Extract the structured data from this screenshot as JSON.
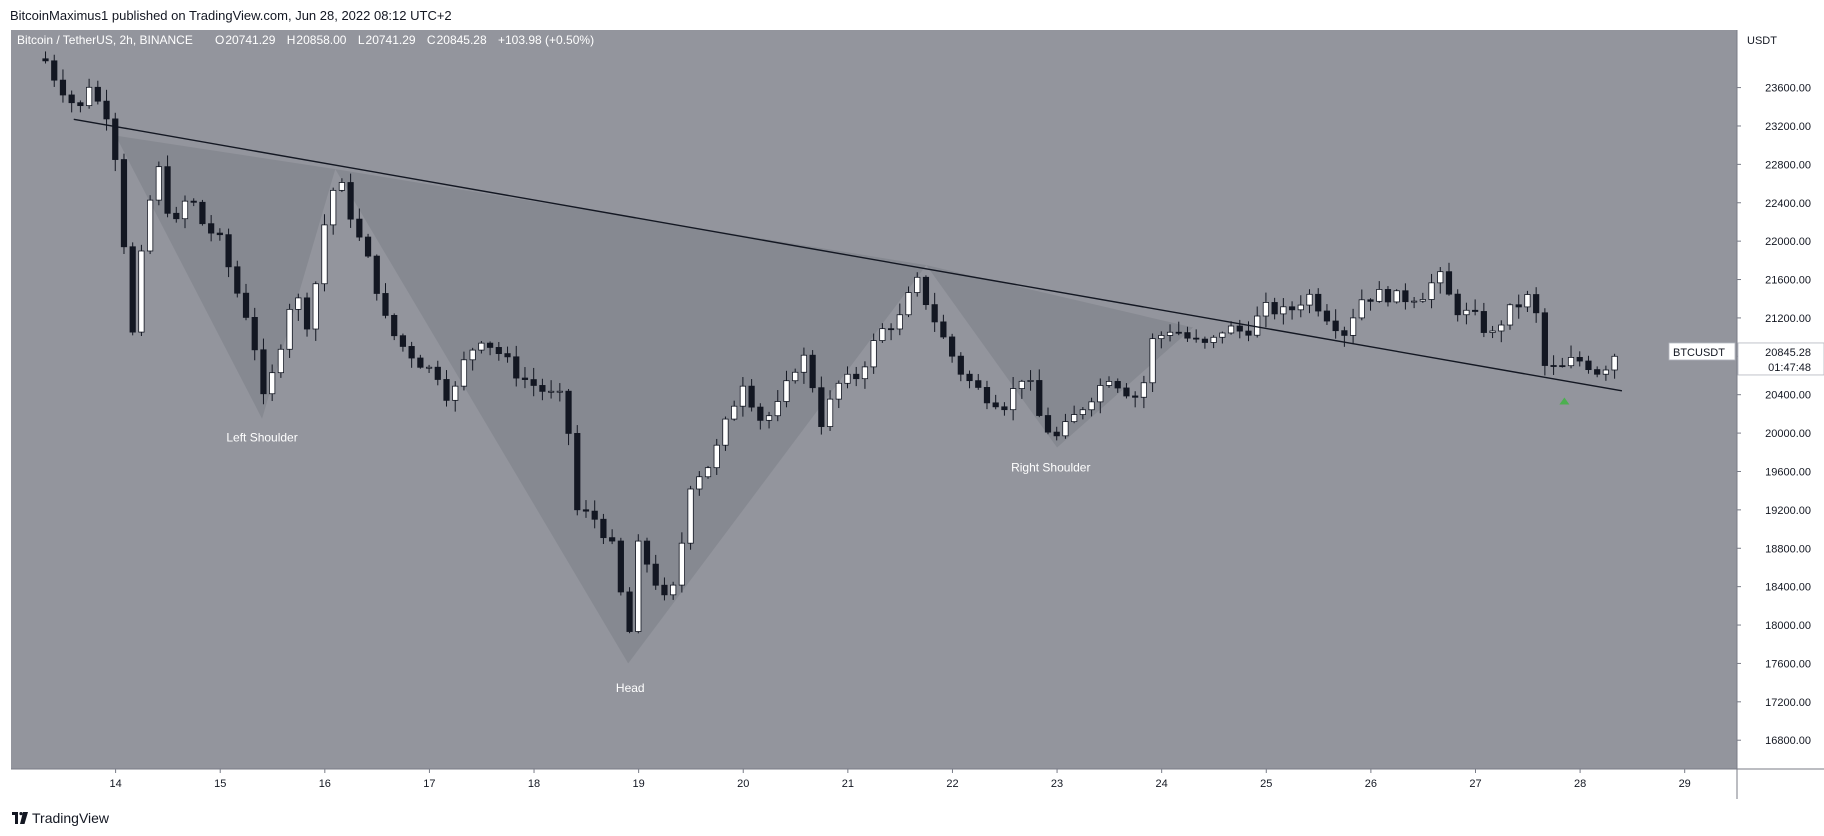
{
  "header": {
    "publisher_line": "BitcoinMaximus1 published on TradingView.com, Jun 28, 2022 08:12 UTC+2"
  },
  "footer": {
    "brand": "TradingView",
    "logo_icon": "tradingview-logo-icon"
  },
  "chart_data": {
    "type": "candlestick",
    "symbol_line": {
      "title": "Bitcoin / TetherUS, 2h, BINANCE",
      "open_label": "O",
      "open": "20741.29",
      "high_label": "H",
      "high": "20858.00",
      "low_label": "L",
      "low": "20741.29",
      "close_label": "C",
      "close": "20845.28",
      "change": "+103.98 (+0.50%)"
    },
    "price_scale": {
      "currency": "USDT",
      "ticks": [
        "23600.00",
        "23200.00",
        "22800.00",
        "22400.00",
        "22000.00",
        "21600.00",
        "21200.00",
        "20800.00",
        "20400.00",
        "20000.00",
        "19600.00",
        "19200.00",
        "18800.00",
        "18400.00",
        "18000.00",
        "17600.00",
        "17200.00",
        "16800.00"
      ]
    },
    "ylim": [
      16500,
      24200
    ],
    "xlim": [
      13.0,
      29.5
    ],
    "x_ticks": [
      "14",
      "15",
      "16",
      "17",
      "18",
      "19",
      "20",
      "21",
      "22",
      "23",
      "24",
      "25",
      "26",
      "27",
      "28",
      "29"
    ],
    "last_price": {
      "symbol": "BTCUSDT",
      "value": "20845.28",
      "countdown": "01:47:48",
      "price": 20845.28
    },
    "colors": {
      "background": "#93959d",
      "up_candle": "#ffffff",
      "down_candle": "#131722",
      "trendline": "#131722",
      "pattern_fill": "#7c7f86",
      "arrow": "#4caf50",
      "annotation_text": "#ffffff"
    },
    "trendline": {
      "start": {
        "x": 13.6,
        "price": 23270
      },
      "end": {
        "x": 28.4,
        "price": 20440
      }
    },
    "pattern": {
      "name": "inverse head and shoulders",
      "points": [
        {
          "x": 14.0,
          "price": 23100
        },
        {
          "x": 15.4,
          "price": 20150
        },
        {
          "x": 16.1,
          "price": 22750
        },
        {
          "x": 18.9,
          "price": 17600
        },
        {
          "x": 21.75,
          "price": 21750
        },
        {
          "x": 23.0,
          "price": 19850
        },
        {
          "x": 24.3,
          "price": 21100
        }
      ]
    },
    "annotations": [
      {
        "text": "Left Shoulder",
        "x": 15.4,
        "price": 19910
      },
      {
        "text": "Head",
        "x": 18.92,
        "price": 17300
      },
      {
        "text": "Right Shoulder",
        "x": 22.94,
        "price": 19600
      }
    ],
    "marker": {
      "name": "up-arrow",
      "x": 27.85,
      "price": 20340
    },
    "waypoints": [
      [
        13.32,
        23900
      ],
      [
        13.42,
        23700
      ],
      [
        13.55,
        23500
      ],
      [
        13.65,
        23350
      ],
      [
        13.75,
        23650
      ],
      [
        13.85,
        23400
      ],
      [
        13.95,
        23300
      ],
      [
        14.05,
        22450
      ],
      [
        14.15,
        20900
      ],
      [
        14.28,
        22150
      ],
      [
        14.4,
        22800
      ],
      [
        14.55,
        22100
      ],
      [
        14.7,
        22500
      ],
      [
        14.82,
        22200
      ],
      [
        15.0,
        22000
      ],
      [
        15.15,
        21500
      ],
      [
        15.3,
        21100
      ],
      [
        15.42,
        20300
      ],
      [
        15.55,
        20800
      ],
      [
        15.7,
        21500
      ],
      [
        15.85,
        21100
      ],
      [
        16.0,
        22200
      ],
      [
        16.12,
        22700
      ],
      [
        16.3,
        22100
      ],
      [
        16.45,
        21700
      ],
      [
        16.6,
        21100
      ],
      [
        16.75,
        20900
      ],
      [
        16.95,
        20700
      ],
      [
        17.1,
        20600
      ],
      [
        17.2,
        20300
      ],
      [
        17.35,
        20800
      ],
      [
        17.5,
        21000
      ],
      [
        17.7,
        20800
      ],
      [
        17.85,
        20600
      ],
      [
        18.0,
        20500
      ],
      [
        18.15,
        20400
      ],
      [
        18.3,
        20350
      ],
      [
        18.4,
        19200
      ],
      [
        18.6,
        19100
      ],
      [
        18.75,
        18800
      ],
      [
        18.85,
        18200
      ],
      [
        18.92,
        17900
      ],
      [
        19.0,
        18850
      ],
      [
        19.1,
        18600
      ],
      [
        19.25,
        18250
      ],
      [
        19.35,
        18400
      ],
      [
        19.5,
        19500
      ],
      [
        19.7,
        19700
      ],
      [
        19.85,
        20150
      ],
      [
        20.0,
        20550
      ],
      [
        20.15,
        20150
      ],
      [
        20.3,
        20200
      ],
      [
        20.5,
        20700
      ],
      [
        20.6,
        20800
      ],
      [
        20.75,
        20100
      ],
      [
        20.9,
        20500
      ],
      [
        21.1,
        20600
      ],
      [
        21.3,
        21050
      ],
      [
        21.5,
        21200
      ],
      [
        21.65,
        21600
      ],
      [
        21.8,
        21250
      ],
      [
        21.95,
        20900
      ],
      [
        22.1,
        20600
      ],
      [
        22.3,
        20400
      ],
      [
        22.5,
        20300
      ],
      [
        22.7,
        20650
      ],
      [
        22.85,
        20100
      ],
      [
        23.0,
        19950
      ],
      [
        23.15,
        20150
      ],
      [
        23.3,
        20350
      ],
      [
        23.5,
        20600
      ],
      [
        23.65,
        20450
      ],
      [
        23.8,
        20350
      ],
      [
        23.9,
        20950
      ],
      [
        24.1,
        21100
      ],
      [
        24.3,
        20950
      ],
      [
        24.45,
        20900
      ],
      [
        24.6,
        21100
      ],
      [
        24.8,
        21050
      ],
      [
        25.0,
        21300
      ],
      [
        25.2,
        21250
      ],
      [
        25.4,
        21450
      ],
      [
        25.6,
        21200
      ],
      [
        25.75,
        21050
      ],
      [
        25.9,
        21400
      ],
      [
        26.1,
        21450
      ],
      [
        26.3,
        21400
      ],
      [
        26.5,
        21450
      ],
      [
        26.65,
        21650
      ],
      [
        26.8,
        21300
      ],
      [
        27.0,
        21200
      ],
      [
        27.15,
        21000
      ],
      [
        27.3,
        21250
      ],
      [
        27.55,
        21450
      ],
      [
        27.65,
        20700
      ],
      [
        27.8,
        20650
      ],
      [
        27.95,
        20780
      ],
      [
        28.1,
        20700
      ],
      [
        28.2,
        20620
      ],
      [
        28.3,
        20800
      ],
      [
        28.36,
        20845
      ]
    ]
  }
}
